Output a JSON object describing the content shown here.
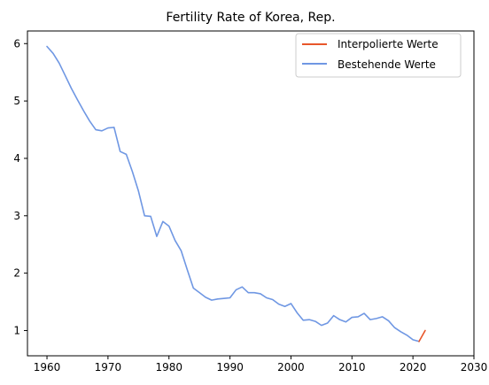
{
  "chart_data": {
    "type": "line",
    "title": "Fertility Rate of Korea, Rep.",
    "xlabel": "",
    "ylabel": "",
    "xlim": [
      1956.8,
      2030
    ],
    "ylim": [
      0.56,
      6.22
    ],
    "xticks": [
      1960,
      1970,
      1980,
      1990,
      2000,
      2010,
      2020,
      2030
    ],
    "yticks": [
      1,
      2,
      3,
      4,
      5,
      6
    ],
    "grid": false,
    "legend_position": "top-right",
    "series": [
      {
        "name": "Interpolierte Werte",
        "color": "#e8562a",
        "x": [
          2021,
          2022
        ],
        "y": [
          0.81,
          1.0
        ]
      },
      {
        "name": "Bestehende Werte",
        "color": "#6f97e3",
        "x": [
          1960,
          1961,
          1962,
          1963,
          1964,
          1965,
          1966,
          1967,
          1968,
          1969,
          1970,
          1971,
          1972,
          1973,
          1974,
          1975,
          1976,
          1977,
          1978,
          1979,
          1980,
          1981,
          1982,
          1983,
          1984,
          1985,
          1986,
          1987,
          1988,
          1989,
          1990,
          1991,
          1992,
          1993,
          1994,
          1995,
          1996,
          1997,
          1998,
          1999,
          2000,
          2001,
          2002,
          2003,
          2004,
          2005,
          2006,
          2007,
          2008,
          2009,
          2010,
          2011,
          2012,
          2013,
          2014,
          2015,
          2016,
          2017,
          2018,
          2019,
          2020,
          2021
        ],
        "y": [
          5.95,
          5.83,
          5.66,
          5.44,
          5.22,
          5.02,
          4.83,
          4.65,
          4.5,
          4.48,
          4.53,
          4.54,
          4.12,
          4.07,
          3.77,
          3.43,
          3.0,
          2.99,
          2.64,
          2.9,
          2.82,
          2.57,
          2.39,
          2.06,
          1.74,
          1.66,
          1.58,
          1.53,
          1.55,
          1.56,
          1.57,
          1.71,
          1.76,
          1.66,
          1.66,
          1.64,
          1.57,
          1.54,
          1.46,
          1.42,
          1.47,
          1.31,
          1.18,
          1.19,
          1.16,
          1.09,
          1.13,
          1.26,
          1.19,
          1.15,
          1.23,
          1.24,
          1.3,
          1.19,
          1.21,
          1.24,
          1.17,
          1.05,
          0.98,
          0.92,
          0.84,
          0.81
        ]
      }
    ]
  }
}
